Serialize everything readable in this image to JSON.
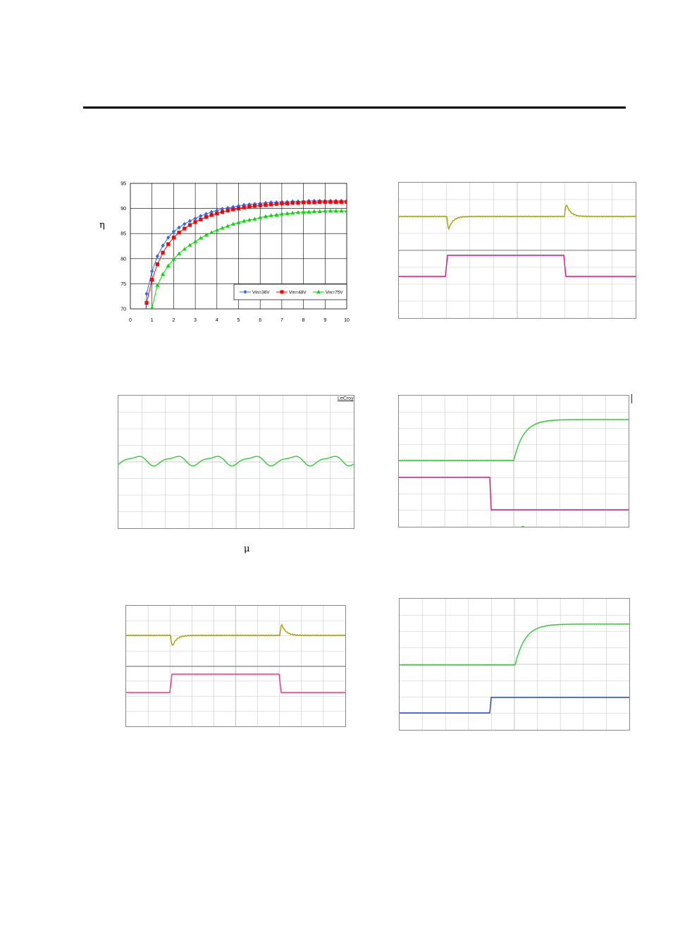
{
  "document": {
    "symbols": {
      "eta": "η",
      "mu": "μ"
    },
    "scope_brand": "LeCroy"
  },
  "chart_data": [
    {
      "type": "line",
      "title": "",
      "xlabel": "",
      "ylabel": "η",
      "xlim": [
        0,
        10
      ],
      "ylim": [
        70,
        95
      ],
      "x_ticks": [
        "0",
        "1",
        "2",
        "3",
        "4",
        "5",
        "6",
        "7",
        "8",
        "9",
        "10"
      ],
      "y_ticks": [
        "70",
        "75",
        "80",
        "85",
        "90",
        "95"
      ],
      "grid": true,
      "legend_position": "bottom-right",
      "x": [
        0.75,
        1.0,
        1.25,
        1.5,
        1.75,
        2.0,
        2.25,
        2.5,
        2.75,
        3.0,
        3.25,
        3.5,
        3.75,
        4.0,
        4.25,
        4.5,
        4.75,
        5.0,
        5.25,
        5.5,
        5.75,
        6.0,
        6.25,
        6.5,
        6.75,
        7.0,
        7.25,
        7.5,
        7.75,
        8.0,
        8.25,
        8.5,
        8.75,
        9.0,
        9.25,
        9.5,
        9.75,
        10.0
      ],
      "series": [
        {
          "name": "Vin=36V",
          "color": "#3366ff",
          "marker": "diamond",
          "values": [
            73.0,
            77.5,
            80.5,
            82.6,
            84.2,
            85.4,
            86.2,
            86.9,
            87.5,
            88.0,
            88.5,
            88.9,
            89.3,
            89.6,
            89.9,
            90.1,
            90.3,
            90.5,
            90.7,
            90.8,
            90.9,
            91.0,
            91.1,
            91.2,
            91.2,
            91.3,
            91.3,
            91.4,
            91.4,
            91.4,
            91.5,
            91.5,
            91.5,
            91.5,
            91.5,
            91.5,
            91.5,
            91.5
          ]
        },
        {
          "name": "Vin=48V",
          "color": "#ff0000",
          "marker": "square",
          "values": [
            71.2,
            75.8,
            78.9,
            81.2,
            82.9,
            84.2,
            85.2,
            86.0,
            86.7,
            87.3,
            87.8,
            88.3,
            88.7,
            89.0,
            89.3,
            89.6,
            89.8,
            90.0,
            90.2,
            90.4,
            90.5,
            90.6,
            90.7,
            90.8,
            90.9,
            91.0,
            91.0,
            91.1,
            91.1,
            91.2,
            91.2,
            91.2,
            91.3,
            91.3,
            91.3,
            91.3,
            91.3,
            91.3
          ]
        },
        {
          "name": "Vin=75V",
          "color": "#00dd00",
          "marker": "triangle",
          "values": [
            null,
            70.2,
            74.7,
            76.9,
            78.6,
            79.9,
            81.0,
            81.9,
            82.7,
            83.4,
            84.1,
            84.7,
            85.2,
            85.7,
            86.1,
            86.5,
            86.9,
            87.2,
            87.5,
            87.7,
            87.9,
            88.2,
            88.4,
            88.6,
            88.7,
            88.9,
            89.0,
            89.1,
            89.2,
            89.3,
            89.3,
            89.4,
            89.4,
            89.5,
            89.5,
            89.5,
            89.5,
            89.5
          ]
        }
      ]
    },
    {
      "type": "line",
      "title": "",
      "grid": true,
      "series": [
        {
          "name": "",
          "color": "#a8a000",
          "shape": "load transient: dip at step-up, spike at step-down"
        },
        {
          "name": "",
          "color": "#d4148c",
          "shape": "step: low-high-low"
        }
      ]
    },
    {
      "type": "line",
      "title": "",
      "grid": true,
      "series": [
        {
          "name": "",
          "color": "#33cc33",
          "shape": "ripple waveform, 6 periods"
        }
      ]
    },
    {
      "type": "line",
      "title": "",
      "grid": true,
      "series": [
        {
          "name": "",
          "color": "#33cc33",
          "shape": "turn-on ramp rising exponentially"
        },
        {
          "name": "",
          "color": "#d4148c",
          "shape": "step down"
        }
      ]
    },
    {
      "type": "line",
      "title": "",
      "grid": true,
      "series": [
        {
          "name": "",
          "color": "#a8a000",
          "shape": "load transient: dip at step-up, spike at step-down"
        },
        {
          "name": "",
          "color": "#ee3388",
          "shape": "step: low-high-low"
        }
      ]
    },
    {
      "type": "line",
      "title": "",
      "grid": true,
      "series": [
        {
          "name": "",
          "color": "#33cc33",
          "shape": "turn-on ramp rising exponentially"
        },
        {
          "name": "",
          "color": "#2244dd",
          "shape": "step up"
        }
      ]
    }
  ]
}
